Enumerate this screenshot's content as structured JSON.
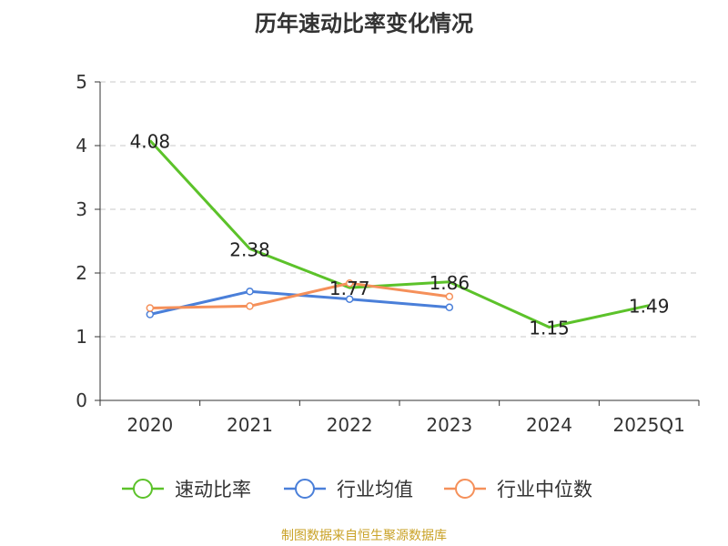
{
  "chart_data": {
    "type": "line",
    "title": "历年速动比率变化情况",
    "categories": [
      "2020",
      "2021",
      "2022",
      "2023",
      "2024",
      "2025Q1"
    ],
    "yticks": [
      "0",
      "1",
      "2",
      "3",
      "4",
      "5"
    ],
    "ylim": [
      0,
      5
    ],
    "grid": true,
    "legend_position": "bottom",
    "series": [
      {
        "name": "速动比率",
        "color": "#5cc22a",
        "values": [
          4.08,
          2.38,
          1.77,
          1.86,
          1.15,
          1.49
        ],
        "labels": [
          "4.08",
          "2.38",
          "1.77",
          "1.86",
          "1.15",
          "1.49"
        ],
        "show_labels": true,
        "show_markers": false
      },
      {
        "name": "行业均值",
        "color": "#4a7fd9",
        "values": [
          1.35,
          1.71,
          1.59,
          1.46,
          null,
          null
        ],
        "show_labels": false,
        "show_markers": true
      },
      {
        "name": "行业中位数",
        "color": "#f5905a",
        "values": [
          1.45,
          1.48,
          1.84,
          1.63,
          null,
          null
        ],
        "show_labels": false,
        "show_markers": true
      }
    ]
  },
  "footer": {
    "source": "制图数据来自恒生聚源数据库"
  }
}
